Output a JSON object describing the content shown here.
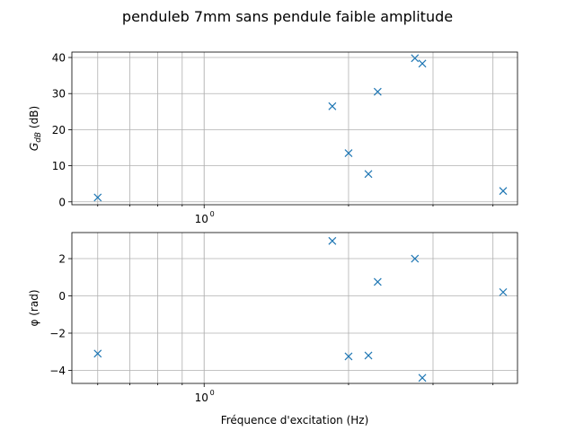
{
  "figure": {
    "title": "penduleb 7mm sans pendule faible amplitude"
  },
  "chart_data": [
    {
      "type": "scatter",
      "xscale": "log",
      "xlim": [
        0.53,
        4.5
      ],
      "ylim": [
        -0.8,
        41.5
      ],
      "x_tick_labels": [
        {
          "value": 1,
          "label": "10",
          "exp": "0"
        }
      ],
      "y_ticks": [
        0,
        10,
        20,
        30,
        40
      ],
      "ylabel": "G",
      "ylabel_sub": "dB",
      "ylabel_unit": " (dB)",
      "xlabel": "",
      "grid": true,
      "marker": "x",
      "color": "#1f77b4",
      "points": [
        {
          "x": 0.6,
          "y": 1.2
        },
        {
          "x": 1.85,
          "y": 26.5
        },
        {
          "x": 2.0,
          "y": 13.5
        },
        {
          "x": 2.2,
          "y": 7.7
        },
        {
          "x": 2.3,
          "y": 30.5
        },
        {
          "x": 2.75,
          "y": 39.8
        },
        {
          "x": 2.85,
          "y": 38.3
        },
        {
          "x": 4.2,
          "y": 3.0
        }
      ]
    },
    {
      "type": "scatter",
      "xscale": "log",
      "xlim": [
        0.53,
        4.5
      ],
      "ylim": [
        -4.7,
        3.4
      ],
      "x_tick_labels": [
        {
          "value": 1,
          "label": "10",
          "exp": "0"
        }
      ],
      "y_ticks": [
        -4,
        -2,
        0,
        2
      ],
      "ylabel": "φ (rad)",
      "xlabel": "Fréquence d'excitation (Hz)",
      "grid": true,
      "marker": "x",
      "color": "#1f77b4",
      "points": [
        {
          "x": 0.6,
          "y": -3.1
        },
        {
          "x": 1.85,
          "y": 2.95
        },
        {
          "x": 2.0,
          "y": -3.25
        },
        {
          "x": 2.2,
          "y": -3.2
        },
        {
          "x": 2.3,
          "y": 0.75
        },
        {
          "x": 2.75,
          "y": 2.0
        },
        {
          "x": 2.85,
          "y": -4.4
        },
        {
          "x": 4.2,
          "y": 0.2
        }
      ]
    }
  ]
}
